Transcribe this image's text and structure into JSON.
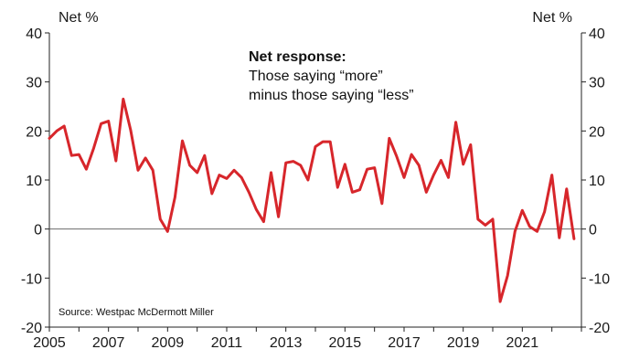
{
  "chart_data": {
    "type": "line",
    "left_unit": "Net %",
    "right_unit": "Net %",
    "annotation": {
      "title": "Net response:",
      "lines": [
        "Those saying “more”",
        "minus those saying “less”"
      ]
    },
    "source": "Source: Westpac McDermott Miller",
    "ylim": [
      -20,
      40
    ],
    "yticks": [
      -20,
      -10,
      0,
      10,
      20,
      30,
      40
    ],
    "xlim": [
      2005,
      2023.0
    ],
    "xticks": [
      2005,
      2007,
      2009,
      2011,
      2013,
      2015,
      2017,
      2019,
      2021
    ],
    "grid": false,
    "legend": "none",
    "zero_line": true,
    "series": [
      {
        "color": "#d7262b",
        "x": [
          2005.0,
          2005.25,
          2005.5,
          2005.75,
          2006.0,
          2006.25,
          2006.5,
          2006.75,
          2007.0,
          2007.25,
          2007.5,
          2007.75,
          2008.0,
          2008.25,
          2008.5,
          2008.75,
          2009.0,
          2009.25,
          2009.5,
          2009.75,
          2010.0,
          2010.25,
          2010.5,
          2010.75,
          2011.0,
          2011.25,
          2011.5,
          2011.75,
          2012.0,
          2012.25,
          2012.5,
          2012.75,
          2013.0,
          2013.25,
          2013.5,
          2013.75,
          2014.0,
          2014.25,
          2014.5,
          2014.75,
          2015.0,
          2015.25,
          2015.5,
          2015.75,
          2016.0,
          2016.25,
          2016.5,
          2016.75,
          2017.0,
          2017.25,
          2017.5,
          2017.75,
          2018.0,
          2018.25,
          2018.5,
          2018.75,
          2019.0,
          2019.25,
          2019.5,
          2019.75,
          2020.0,
          2020.25,
          2020.5,
          2020.75,
          2021.0,
          2021.25,
          2021.5,
          2021.75,
          2022.0,
          2022.25,
          2022.5,
          2022.75
        ],
        "values": [
          18.5,
          20,
          21,
          15,
          15.2,
          12.2,
          16.5,
          21.5,
          22,
          13.9,
          26.5,
          20.2,
          12,
          14.5,
          12,
          2,
          -0.5,
          6.5,
          18,
          13,
          11.5,
          15,
          7.2,
          11,
          10.3,
          12,
          10.5,
          7.5,
          4,
          1.5,
          11.5,
          2.5,
          13.5,
          13.8,
          13,
          10,
          16.8,
          17.8,
          17.8,
          8.5,
          13.2,
          7.5,
          8,
          12.2,
          12.5,
          5.2,
          18.5,
          14.8,
          10.5,
          15.2,
          13,
          7.5,
          11,
          14,
          10.5,
          21.8,
          13.2,
          17.2,
          2,
          0.8,
          2,
          -14.8,
          -9.5,
          -0.5,
          3.8,
          0.5,
          -0.5,
          3.5,
          11,
          -1.8,
          8.2,
          -2
        ]
      }
    ]
  }
}
